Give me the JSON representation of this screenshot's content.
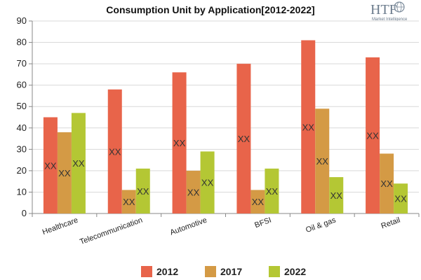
{
  "chart_data": {
    "type": "bar",
    "title": "Consumption Unit by  Application[2012-2022]",
    "categories": [
      "Healthcare",
      "Telecommunication",
      "Automotive",
      "BFSI",
      "Oil & gas",
      "Retail"
    ],
    "series": [
      {
        "name": "2012",
        "color": "#e8644a",
        "values": [
          45,
          58,
          66,
          70,
          81,
          73
        ]
      },
      {
        "name": "2017",
        "color": "#d49a45",
        "values": [
          38,
          11,
          20,
          11,
          49,
          28
        ]
      },
      {
        "name": "2022",
        "color": "#b4c734",
        "values": [
          47,
          21,
          29,
          21,
          17,
          14
        ]
      }
    ],
    "data_label": "XX",
    "ylim": [
      0,
      90
    ],
    "yticks": [
      0,
      10,
      20,
      30,
      40,
      50,
      60,
      70,
      80,
      90
    ],
    "grid": true,
    "legend_position": "bottom"
  },
  "logo": {
    "text": "HTF",
    "subtitle": "Market Intelligence",
    "icon": "globe-icon"
  }
}
